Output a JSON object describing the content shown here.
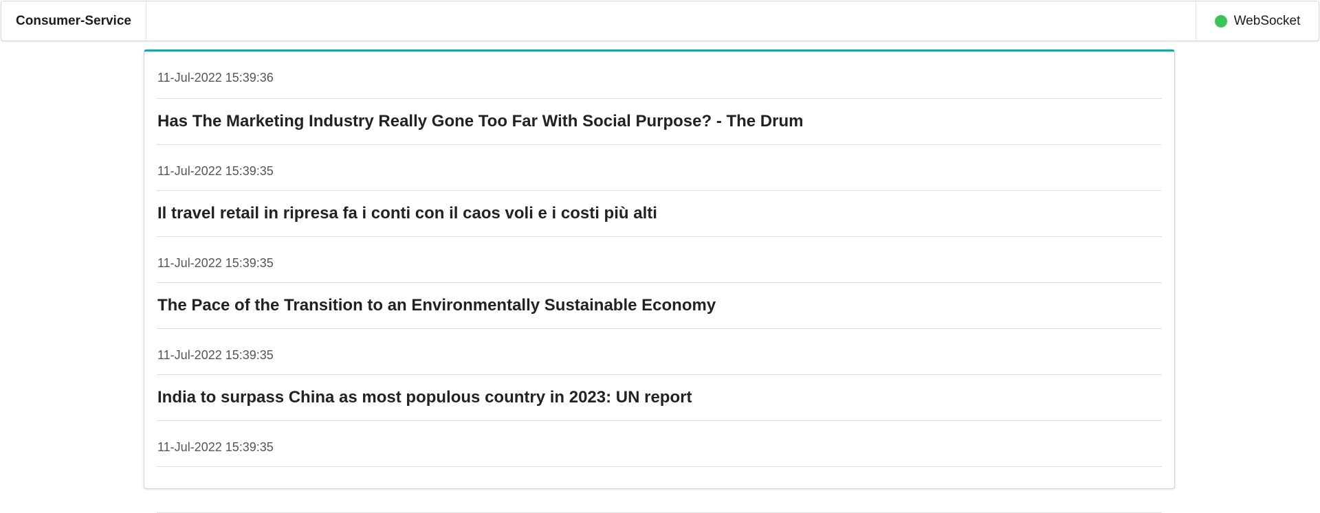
{
  "header": {
    "brand": "Consumer-Service",
    "connection_label": "WebSocket",
    "connection_status_color": "#3cc35a"
  },
  "feed": {
    "accent_color": "#1aa89c",
    "items": [
      {
        "timestamp": "11-Jul-2022 15:39:36",
        "headline": "Has The Marketing Industry Really Gone Too Far With Social Purpose? - The Drum"
      },
      {
        "timestamp": "11-Jul-2022 15:39:35",
        "headline": "Il travel retail in ripresa fa i conti con il caos voli e i costi più alti"
      },
      {
        "timestamp": "11-Jul-2022 15:39:35",
        "headline": "The Pace of the Transition to an Environmentally Sustainable Economy"
      },
      {
        "timestamp": "11-Jul-2022 15:39:35",
        "headline": "India to surpass China as most populous country in 2023: UN report"
      },
      {
        "timestamp": "11-Jul-2022 15:39:35",
        "headline": ""
      }
    ]
  }
}
